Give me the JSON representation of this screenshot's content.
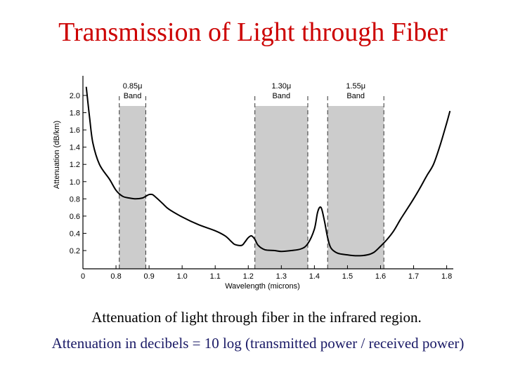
{
  "title": "Transmission of Light through Fiber",
  "caption1": "Attenuation of light through fiber in the infrared region.",
  "caption2": "Attenuation in decibels = 10 log (transmitted power / received power)",
  "colors": {
    "title": "#cc0000",
    "caption2": "#1a1a66",
    "band": "#cccccc",
    "curve": "#000000"
  },
  "chart_data": {
    "type": "line",
    "title": "",
    "xlabel": "Wavelength (microns)",
    "ylabel": "Attenuation (dB/km)",
    "xlim": [
      0.7,
      1.82
    ],
    "ylim": [
      0.0,
      2.15
    ],
    "x_ticks": [
      {
        "v": 0.7,
        "label": "0"
      },
      {
        "v": 0.8,
        "label": "0.8"
      },
      {
        "v": 0.9,
        "label": "0.9"
      },
      {
        "v": 1.0,
        "label": "1.0"
      },
      {
        "v": 1.1,
        "label": "1.1"
      },
      {
        "v": 1.2,
        "label": "1.2"
      },
      {
        "v": 1.3,
        "label": "1.3"
      },
      {
        "v": 1.4,
        "label": "1.4"
      },
      {
        "v": 1.5,
        "label": "1.5"
      },
      {
        "v": 1.6,
        "label": "1.6"
      },
      {
        "v": 1.7,
        "label": "1.7"
      },
      {
        "v": 1.8,
        "label": "1.8"
      }
    ],
    "y_ticks": [
      {
        "v": 0.2,
        "label": "0.2"
      },
      {
        "v": 0.4,
        "label": "0.4"
      },
      {
        "v": 0.6,
        "label": "0.6"
      },
      {
        "v": 0.8,
        "label": "0.8"
      },
      {
        "v": 1.0,
        "label": "1.0"
      },
      {
        "v": 1.2,
        "label": "1.2"
      },
      {
        "v": 1.4,
        "label": "1.4"
      },
      {
        "v": 1.6,
        "label": "1.6"
      },
      {
        "v": 1.8,
        "label": "1.8"
      },
      {
        "v": 2.0,
        "label": "2.0"
      }
    ],
    "bands": [
      {
        "from": 0.81,
        "to": 0.89,
        "label1": "0.85μ",
        "label2": "Band"
      },
      {
        "from": 1.22,
        "to": 1.38,
        "label1": "1.30μ",
        "label2": "Band"
      },
      {
        "from": 1.44,
        "to": 1.61,
        "label1": "1.55μ",
        "label2": "Band"
      }
    ],
    "series": [
      {
        "x": [
          0.71,
          0.72,
          0.73,
          0.75,
          0.78,
          0.8,
          0.82,
          0.84,
          0.86,
          0.88,
          0.89,
          0.9,
          0.91,
          0.92,
          0.94,
          0.96,
          1.0,
          1.05,
          1.1,
          1.13,
          1.15,
          1.16,
          1.18,
          1.19,
          1.2,
          1.21,
          1.22,
          1.23,
          1.25,
          1.28,
          1.3,
          1.33,
          1.36,
          1.38,
          1.4,
          1.41,
          1.42,
          1.43,
          1.44,
          1.45,
          1.47,
          1.5,
          1.53,
          1.56,
          1.58,
          1.6,
          1.62,
          1.64,
          1.66,
          1.68,
          1.7,
          1.72,
          1.74,
          1.76,
          1.78,
          1.8,
          1.81
        ],
        "y": [
          2.1,
          1.75,
          1.45,
          1.2,
          1.03,
          0.9,
          0.83,
          0.81,
          0.8,
          0.81,
          0.83,
          0.85,
          0.85,
          0.82,
          0.75,
          0.68,
          0.59,
          0.5,
          0.43,
          0.37,
          0.3,
          0.27,
          0.26,
          0.3,
          0.35,
          0.37,
          0.33,
          0.26,
          0.21,
          0.2,
          0.19,
          0.2,
          0.22,
          0.28,
          0.45,
          0.65,
          0.7,
          0.55,
          0.35,
          0.23,
          0.17,
          0.15,
          0.14,
          0.15,
          0.18,
          0.25,
          0.33,
          0.43,
          0.56,
          0.68,
          0.8,
          0.93,
          1.07,
          1.2,
          1.42,
          1.68,
          1.82
        ]
      }
    ],
    "grid": false
  }
}
